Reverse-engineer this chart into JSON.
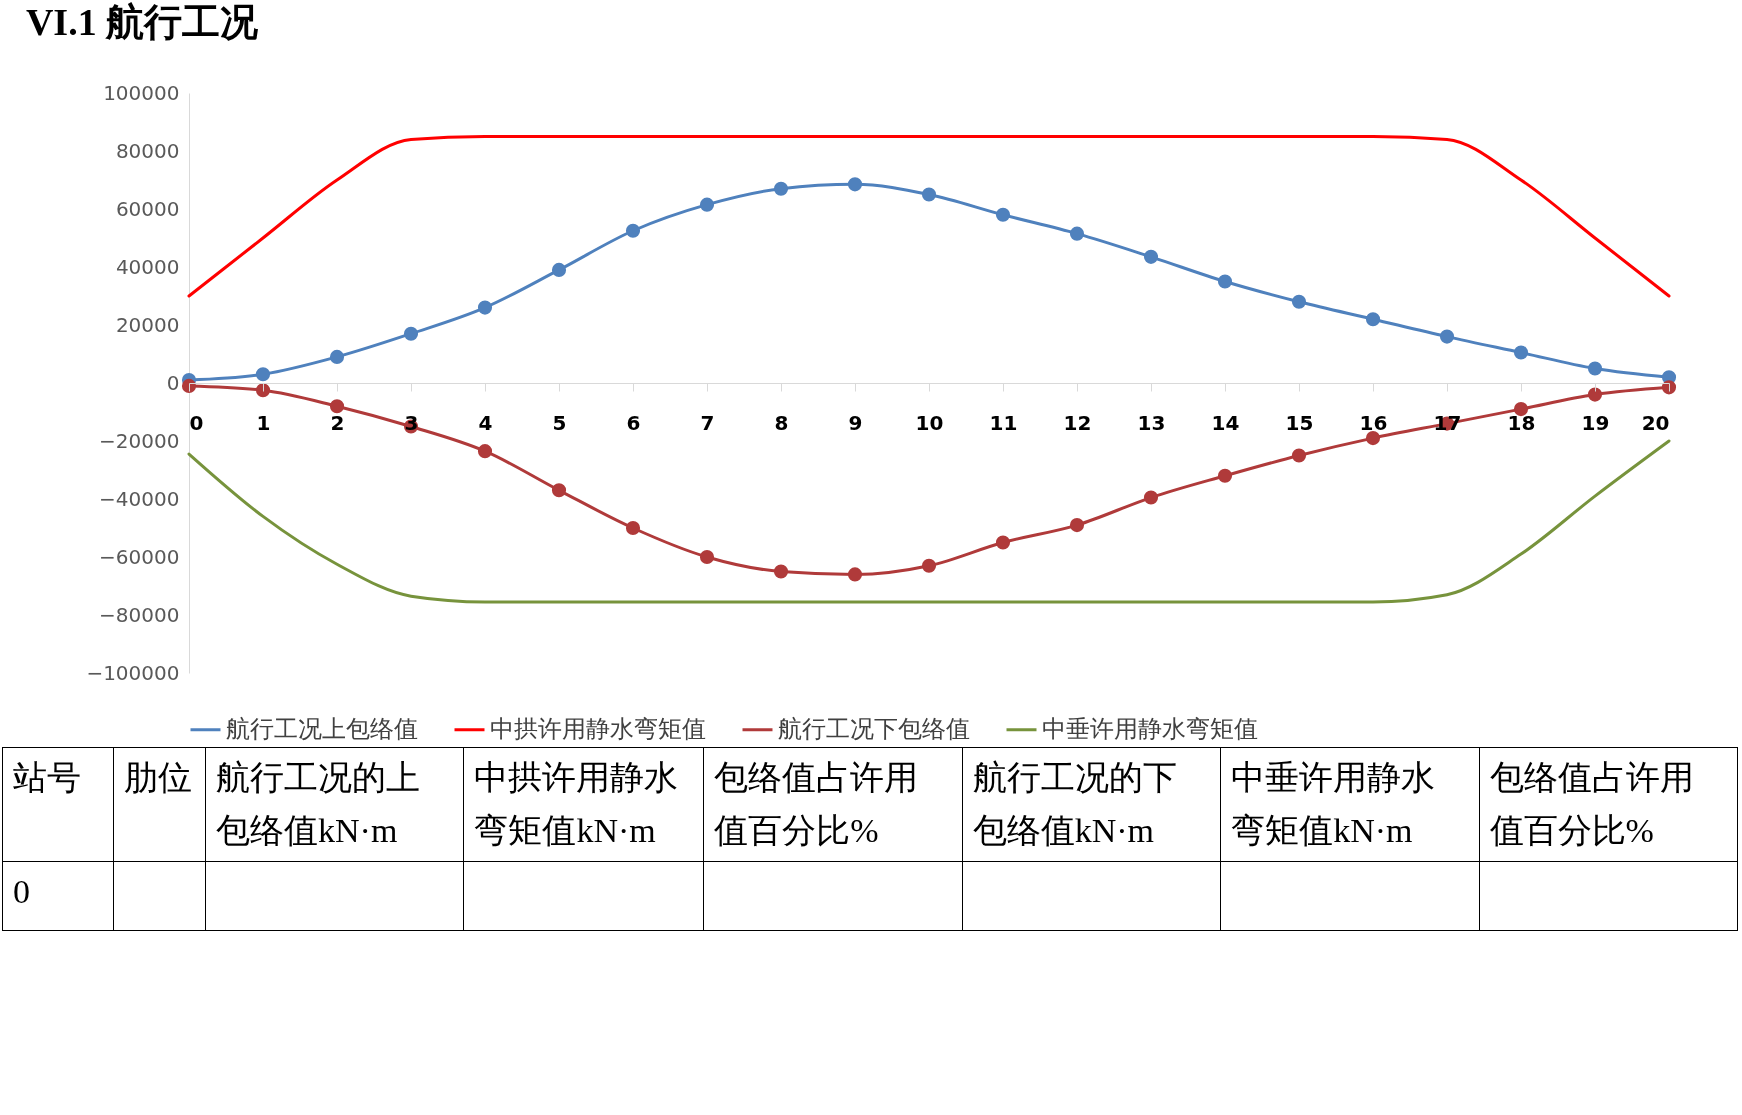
{
  "chart_data": {
    "type": "line",
    "title": "VI.1  航行工况",
    "x": [
      0,
      1,
      2,
      3,
      4,
      5,
      6,
      7,
      8,
      9,
      10,
      11,
      12,
      13,
      14,
      15,
      16,
      17,
      18,
      19,
      20
    ],
    "xlim": [
      0,
      20
    ],
    "xticks": [
      0,
      1,
      2,
      3,
      4,
      5,
      6,
      7,
      8,
      9,
      10,
      11,
      12,
      13,
      14,
      15,
      16,
      17,
      18,
      19,
      20
    ],
    "ylim": [
      -100000,
      100000
    ],
    "yticks": [
      -100000,
      -80000,
      -60000,
      -40000,
      -20000,
      0,
      20000,
      40000,
      60000,
      80000,
      100000
    ],
    "grid": false,
    "legend": "bottom",
    "series": [
      {
        "name": "航行工况上包络值",
        "color": "#4f81bd",
        "marker": "circle",
        "values": [
          1000,
          3000,
          9000,
          17000,
          26000,
          39000,
          52500,
          61500,
          67000,
          68500,
          65000,
          58000,
          51500,
          43500,
          35000,
          28000,
          22000,
          16000,
          10500,
          5000,
          2000
        ]
      },
      {
        "name": "中拱许用静水弯矩值",
        "color": "#ff0000",
        "marker": "none",
        "values": [
          30000,
          50000,
          70000,
          84000,
          85000,
          85000,
          85000,
          85000,
          85000,
          85000,
          85000,
          85000,
          85000,
          85000,
          85000,
          85000,
          85000,
          84000,
          70000,
          50000,
          30000
        ]
      },
      {
        "name": "航行工况下包络值",
        "color": "#b03a3a",
        "marker": "circle",
        "values": [
          -1000,
          -2500,
          -8000,
          -15000,
          -23500,
          -37000,
          -50000,
          -60000,
          -65000,
          -66000,
          -63000,
          -55000,
          -49000,
          -39500,
          -32000,
          -25000,
          -19000,
          -14000,
          -9000,
          -4000,
          -1500
        ]
      },
      {
        "name": "中垂许用静水弯矩值",
        "color": "#77933c",
        "marker": "none",
        "values": [
          -24500,
          -46000,
          -62500,
          -73500,
          -75500,
          -75500,
          -75500,
          -75500,
          -75500,
          -75500,
          -75500,
          -75500,
          -75500,
          -75500,
          -75500,
          -75500,
          -75500,
          -73000,
          -59000,
          -39000,
          -20000
        ]
      }
    ],
    "annotations": [
      "站号",
      "肋位",
      "航行工况的上包络值kN·m",
      "中拱许用静水弯矩值kN·m",
      "包络值占许用值百分比%",
      "航行工况的下包络值kN·m",
      "中垂许用静水弯矩值kN·m",
      "包络值占许用值百分比%",
      "0"
    ]
  }
}
